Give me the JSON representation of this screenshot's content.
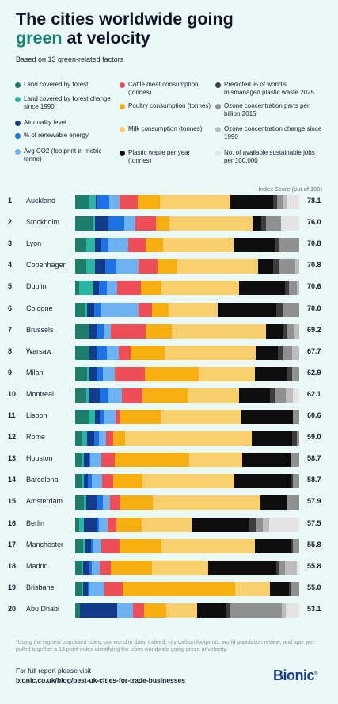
{
  "title_line1": "The cities worldwide going",
  "title_green": "green",
  "title_rest": "at velocity",
  "subtitle": "Based on 13 green-related factors",
  "chart_data": {
    "type": "bar",
    "stacked": true,
    "orientation": "horizontal",
    "x_axis_label": "Index Score (out of 100)",
    "factors": [
      {
        "name": "Land covered by forest",
        "color": "#1d7e6c"
      },
      {
        "name": "Land covered by forest change since 1990",
        "color": "#2bb5a0"
      },
      {
        "name": "Air quality level",
        "color": "#143a8a"
      },
      {
        "name": "% of renewable energy",
        "color": "#1c72e4"
      },
      {
        "name": "Avg CO2 (footprint in metric tonne)",
        "color": "#6cb1f0"
      },
      {
        "name": "Cattle meat consumption (tonnes)",
        "color": "#ee4e57"
      },
      {
        "name": "Poultry consumption (tonnes)",
        "color": "#f6ae10"
      },
      {
        "name": "Milk consumption (tonnes)",
        "color": "#f9cf6b"
      },
      {
        "name": "Plastic waste per year (tonnes)",
        "color": "#0e0e0e"
      },
      {
        "name": "Predicted % of world's mismanaged plastic waste 2025",
        "color": "#3d3d3d"
      },
      {
        "name": "Ozone concentration parts per billion 2015",
        "color": "#8f9090"
      },
      {
        "name": "Ozone concentration change since 1990",
        "color": "#bdbdbd"
      },
      {
        "name": "No. of available sustainable jobs per 100,000",
        "color": "#e4e4e4"
      }
    ],
    "rows": [
      {
        "rank": "1",
        "city": "Auckland",
        "score": "78.1",
        "segments": [
          7,
          3,
          1,
          6,
          5,
          9,
          11,
          35,
          21,
          2,
          3,
          2,
          6
        ]
      },
      {
        "rank": "2",
        "city": "Stockholm",
        "score": "76.0",
        "segments": [
          8,
          1,
          6,
          7,
          5,
          9,
          6,
          37,
          4,
          2,
          7,
          0,
          8
        ]
      },
      {
        "rank": "3",
        "city": "Lyon",
        "score": "70.8",
        "segments": [
          5,
          4,
          3,
          3,
          9,
          8,
          8,
          32,
          19,
          2,
          9,
          0,
          0
        ]
      },
      {
        "rank": "4",
        "city": "Copenhagen",
        "score": "70.8",
        "segments": [
          5,
          4,
          5,
          5,
          10,
          9,
          9,
          37,
          7,
          3,
          7,
          2,
          0
        ]
      },
      {
        "rank": "5",
        "city": "Dublin",
        "score": "70.6",
        "segments": [
          2,
          7,
          3,
          4,
          5,
          12,
          10,
          39,
          23,
          2,
          4,
          1,
          0
        ]
      },
      {
        "rank": "6",
        "city": "Cologne",
        "score": "70.0",
        "segments": [
          4,
          1,
          3,
          3,
          16,
          6,
          7,
          21,
          25,
          3,
          7,
          0,
          0
        ]
      },
      {
        "rank": "7",
        "city": "Brussels",
        "score": "69.2",
        "segments": [
          6,
          0,
          3,
          3,
          3,
          15,
          11,
          40,
          7,
          2,
          3,
          2,
          0
        ]
      },
      {
        "rank": "8",
        "city": "Warsaw",
        "score": "67.7",
        "segments": [
          6,
          0,
          3,
          4,
          5,
          5,
          14,
          38,
          9,
          2,
          4,
          3,
          0
        ]
      },
      {
        "rank": "9",
        "city": "Milan",
        "score": "62.9",
        "segments": [
          5,
          1,
          3,
          3,
          5,
          13,
          23,
          24,
          14,
          2,
          3,
          0,
          0
        ]
      },
      {
        "rank": "10",
        "city": "Montreal",
        "score": "62.1",
        "segments": [
          5,
          1,
          5,
          4,
          6,
          9,
          20,
          23,
          14,
          2,
          5,
          3,
          3
        ]
      },
      {
        "rank": "11",
        "city": "Lisbon",
        "score": "60.6",
        "segments": [
          6,
          3,
          2,
          2,
          5,
          2,
          18,
          36,
          23,
          0,
          3,
          0,
          0
        ]
      },
      {
        "rank": "12",
        "city": "Rome",
        "score": "59.0",
        "segments": [
          3,
          2,
          3,
          2,
          3,
          3,
          5,
          53,
          17,
          2,
          1,
          0,
          0
        ]
      },
      {
        "rank": "13",
        "city": "Houston",
        "score": "58.7",
        "segments": [
          3,
          1,
          2,
          1,
          5,
          6,
          34,
          24,
          22,
          0,
          4,
          0,
          0
        ]
      },
      {
        "rank": "14",
        "city": "Barcelona",
        "score": "58.7",
        "segments": [
          3,
          1,
          2,
          2,
          5,
          5,
          14,
          44,
          27,
          1,
          3,
          0,
          0
        ]
      },
      {
        "rank": "15",
        "city": "Amsterdam",
        "score": "57.9",
        "segments": [
          4,
          1,
          5,
          3,
          3,
          5,
          15,
          50,
          12,
          0,
          6,
          0,
          0
        ]
      },
      {
        "rank": "16",
        "city": "Berlin",
        "score": "57.5",
        "segments": [
          2,
          2,
          6,
          1,
          4,
          4,
          12,
          23,
          27,
          3,
          3,
          3,
          14
        ]
      },
      {
        "rank": "17",
        "city": "Manchester",
        "score": "55.8",
        "segments": [
          4,
          1,
          3,
          1,
          4,
          9,
          21,
          47,
          18,
          1,
          3,
          0,
          0
        ]
      },
      {
        "rank": "18",
        "city": "Madrid",
        "score": "55.8",
        "segments": [
          3,
          1,
          3,
          1,
          4,
          5,
          20,
          27,
          33,
          1,
          3,
          6,
          1
        ]
      },
      {
        "rank": "19",
        "city": "Brisbane",
        "score": "55.0",
        "segments": [
          3,
          1,
          2,
          1,
          7,
          9,
          54,
          17,
          9,
          1,
          4,
          0,
          0
        ]
      },
      {
        "rank": "20",
        "city": "Abu Dhabi",
        "score": "53.1",
        "segments": [
          2,
          0,
          17,
          0,
          7,
          5,
          10,
          14,
          13,
          2,
          23,
          2,
          6
        ]
      }
    ]
  },
  "footnote": "*Using the highest populated cities, our world in data,  Indeed, city carbon footprints, world population review, and iqair we pulled together a 13 point index identifying the cities worldwide going green at velocity.",
  "report_line1": "For full report please visit",
  "report_line2": "bionic.co.uk/blog/best-uk-cities-for-trade-businesses",
  "logo_text": "Bionic",
  "logo_mark": "®"
}
